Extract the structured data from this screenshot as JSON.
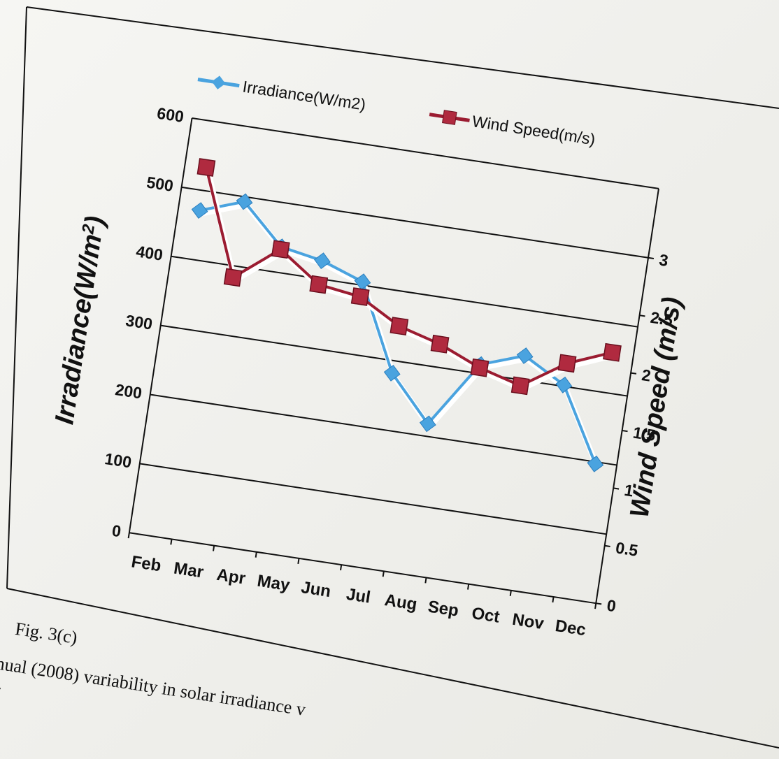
{
  "figure": {
    "label": "Fig. 3(c)",
    "caption_line1": "nual (2008) variability in solar irradiance v",
    "caption_line2": "l."
  },
  "chart_data": {
    "type": "line",
    "categories": [
      "Feb",
      "Mar",
      "Apr",
      "May",
      "Jun",
      "Jul",
      "Aug",
      "Sep",
      "Oct",
      "Nov",
      "Dec"
    ],
    "title": "",
    "xlabel": "",
    "ylabel": "Irradiance(W/m²)",
    "ylabel_main": "Irradiance(W/m",
    "ylabel_sup": "2",
    "ylabel_close": ")",
    "y2label": "Wind Speed (m/s)",
    "ylim": [
      0,
      600
    ],
    "y2lim": [
      0,
      3
    ],
    "yticks": [
      "0",
      "100",
      "200",
      "300",
      "400",
      "500",
      "600"
    ],
    "y2ticks": [
      "0",
      "0.5",
      "1",
      "1.5",
      "2",
      "2.5",
      "3"
    ],
    "grid": true,
    "legend_position": "top",
    "series": [
      {
        "name": "Irradiance(W/m2)",
        "axis": "left",
        "color": "#4aa3df",
        "marker": "diamond",
        "values": [
          471,
          493,
          437,
          426,
          405,
          282,
          218,
          313,
          335,
          302,
          197
        ]
      },
      {
        "name": "Wind Speed(m/s)",
        "axis": "right",
        "color": "#9b1c31",
        "marker": "square",
        "values": [
          3.2,
          2.3,
          2.6,
          2.35,
          2.3,
          2.1,
          2.0,
          1.85,
          1.75,
          2.0,
          2.15
        ]
      }
    ]
  }
}
